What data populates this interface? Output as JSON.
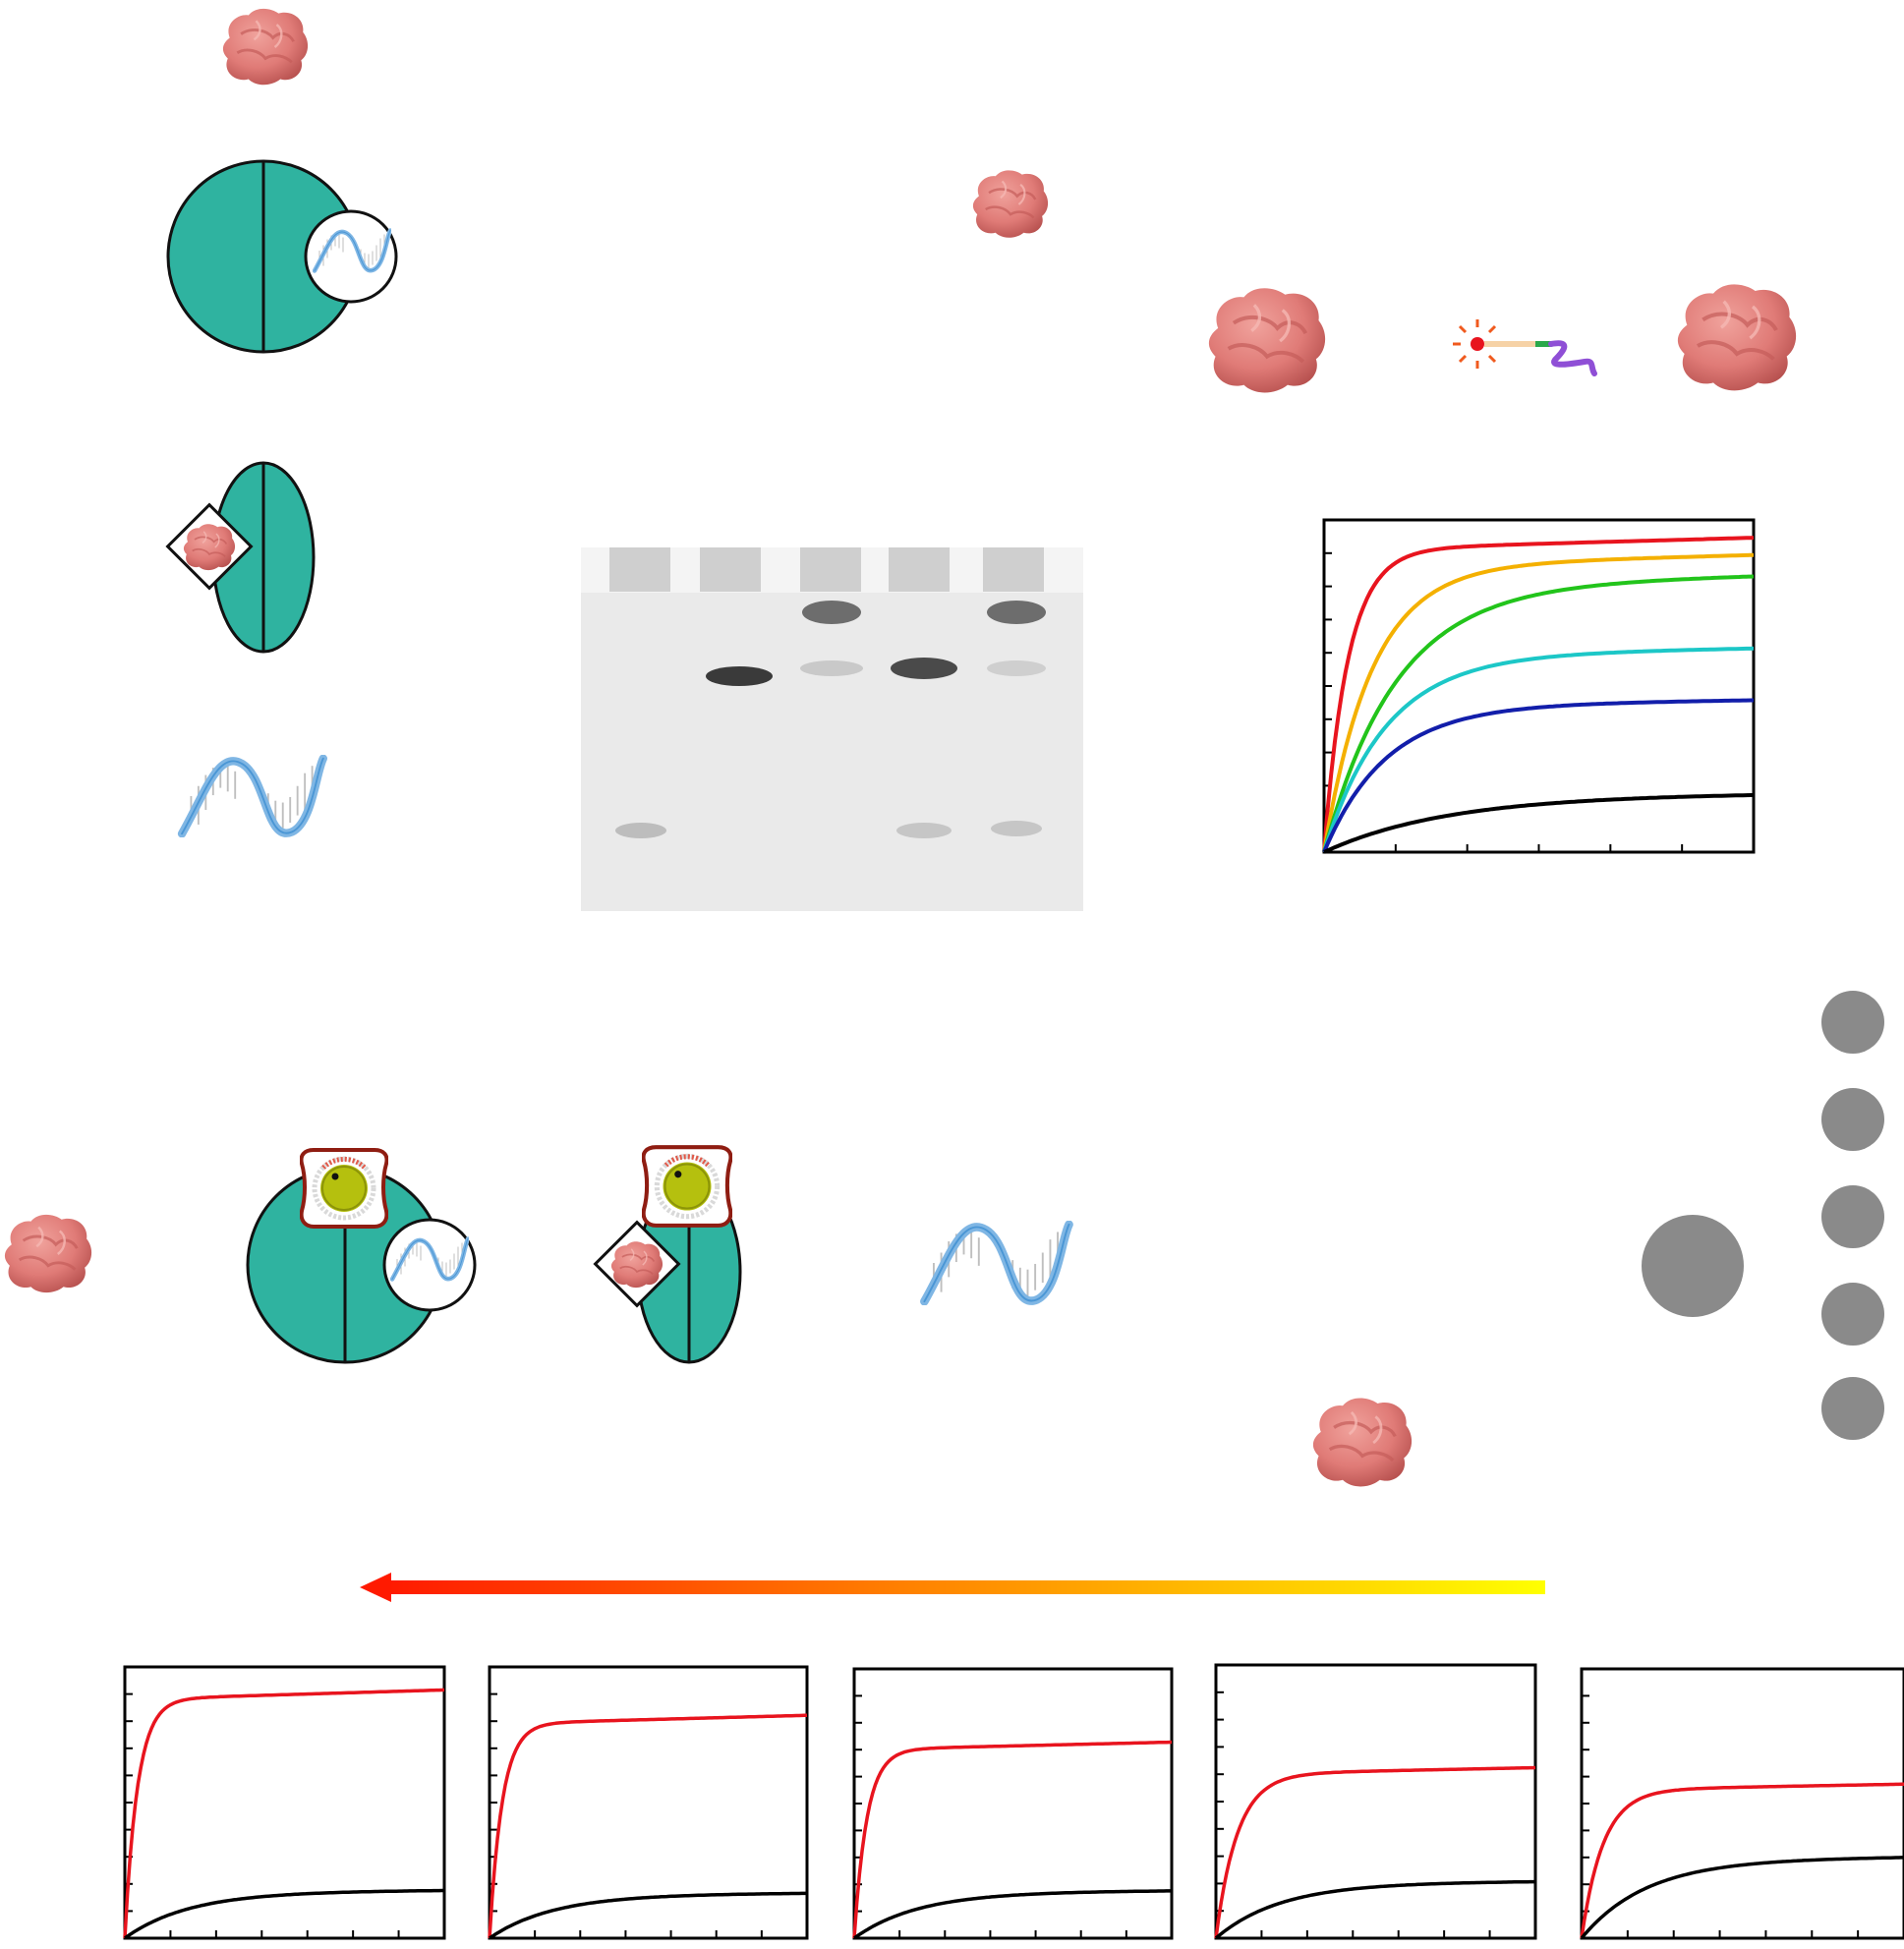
{
  "figure": {
    "colors": {
      "teal": "#2fb3a0",
      "outline": "#111111",
      "protein": "#e07b77",
      "protein_dark": "#c45d5a",
      "dna": "#7fb6e4",
      "dna_dark": "#3d8fd1",
      "gel_bg": "#e9e9e9",
      "band": "#2b2b2b",
      "dial_body": "#b5c00e",
      "dial_frame": "#8f1d12",
      "dot": "#8a8a8a",
      "arrow_start": "#ff1a00",
      "arrow_end": "#ffff00"
    },
    "icons": [
      "protein-icon",
      "dna-helix-icon",
      "dial-knob-icon",
      "fluorophore-probe-icon"
    ],
    "gel": {
      "lanes": 5,
      "bands": [
        {
          "lane": 1,
          "level": "low"
        },
        {
          "lane": 2,
          "level": "mid"
        },
        {
          "lane": 3,
          "level": "top"
        },
        {
          "lane": 3,
          "level": "mid-faint"
        },
        {
          "lane": 4,
          "level": "mid"
        },
        {
          "lane": 4,
          "level": "low"
        },
        {
          "lane": 5,
          "level": "top"
        },
        {
          "lane": 5,
          "level": "mid-faint"
        },
        {
          "lane": 5,
          "level": "low"
        }
      ]
    }
  },
  "chart_data": [
    {
      "type": "line",
      "xlim": [
        0,
        100
      ],
      "ylim": [
        0,
        1
      ],
      "x_ticks": 6,
      "y_ticks": 11,
      "series": [
        {
          "color": "#e8141e",
          "plateau": 0.91,
          "rate": 0.18
        },
        {
          "color": "#f4b000",
          "plateau": 0.86,
          "rate": 0.09
        },
        {
          "color": "#22c41b",
          "plateau": 0.8,
          "rate": 0.06
        },
        {
          "color": "#1cc7c7",
          "plateau": 0.59,
          "rate": 0.07
        },
        {
          "color": "#121eaa",
          "plateau": 0.44,
          "rate": 0.07
        },
        {
          "color": "#000000",
          "plateau": 0.17,
          "rate": 0.035
        }
      ]
    },
    {
      "type": "line",
      "xlim": [
        0,
        100
      ],
      "ylim": [
        0,
        1
      ],
      "series": [
        {
          "color": "#e8141e",
          "plateau": 0.88,
          "rate": 0.25
        },
        {
          "color": "#000000",
          "plateau": 0.17,
          "rate": 0.05
        }
      ]
    },
    {
      "type": "line",
      "xlim": [
        0,
        100
      ],
      "ylim": [
        0,
        1
      ],
      "series": [
        {
          "color": "#e8141e",
          "plateau": 0.79,
          "rate": 0.25
        },
        {
          "color": "#000000",
          "plateau": 0.16,
          "rate": 0.05
        }
      ]
    },
    {
      "type": "line",
      "xlim": [
        0,
        100
      ],
      "ylim": [
        0,
        1
      ],
      "series": [
        {
          "color": "#e8141e",
          "plateau": 0.7,
          "rate": 0.25
        },
        {
          "color": "#000000",
          "plateau": 0.17,
          "rate": 0.05
        }
      ]
    },
    {
      "type": "line",
      "xlim": [
        0,
        100
      ],
      "ylim": [
        0,
        1
      ],
      "series": [
        {
          "color": "#e8141e",
          "plateau": 0.6,
          "rate": 0.15
        },
        {
          "color": "#000000",
          "plateau": 0.2,
          "rate": 0.05
        }
      ]
    },
    {
      "type": "line",
      "xlim": [
        0,
        100
      ],
      "ylim": [
        0,
        1
      ],
      "series": [
        {
          "color": "#e8141e",
          "plateau": 0.55,
          "rate": 0.15
        },
        {
          "color": "#000000",
          "plateau": 0.29,
          "rate": 0.05
        }
      ]
    }
  ]
}
